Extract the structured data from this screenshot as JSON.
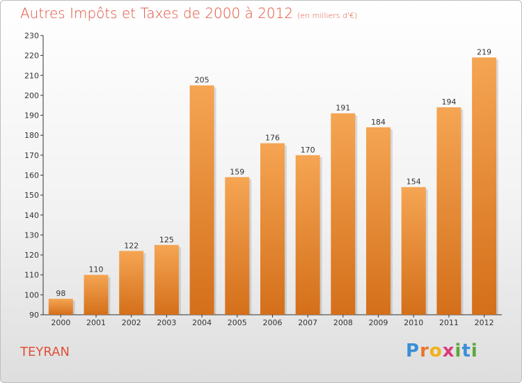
{
  "title": "Autres Impôts et Taxes de 2000 à 2012",
  "unit": "(en milliers d'€)",
  "place": "TEYRAN",
  "logo": {
    "text": "Proxiti",
    "letters": [
      "P",
      "r",
      "o",
      "x",
      "i",
      "t",
      "i"
    ],
    "colors": [
      "#3a8fd6",
      "#e8762b",
      "#f2b019",
      "#d93a7c",
      "#5aa83c",
      "#3a8fd6",
      "#5aa83c"
    ]
  },
  "colors": {
    "bar_top": "#f5a553",
    "bar_bottom": "#d46f1a",
    "title": "#e0503a",
    "axis": "#333333",
    "grid": "#dddddd"
  },
  "chart_data": {
    "type": "bar",
    "categories": [
      "2000",
      "2001",
      "2002",
      "2003",
      "2004",
      "2005",
      "2006",
      "2007",
      "2008",
      "2009",
      "2010",
      "2011",
      "2012"
    ],
    "values": [
      98,
      110,
      122,
      125,
      205,
      159,
      176,
      170,
      191,
      184,
      154,
      194,
      219
    ],
    "ylim": [
      90,
      230
    ],
    "yticks": [
      90,
      100,
      110,
      120,
      130,
      140,
      150,
      160,
      170,
      180,
      190,
      200,
      210,
      220,
      230
    ],
    "grid": false,
    "data_labels": true
  }
}
